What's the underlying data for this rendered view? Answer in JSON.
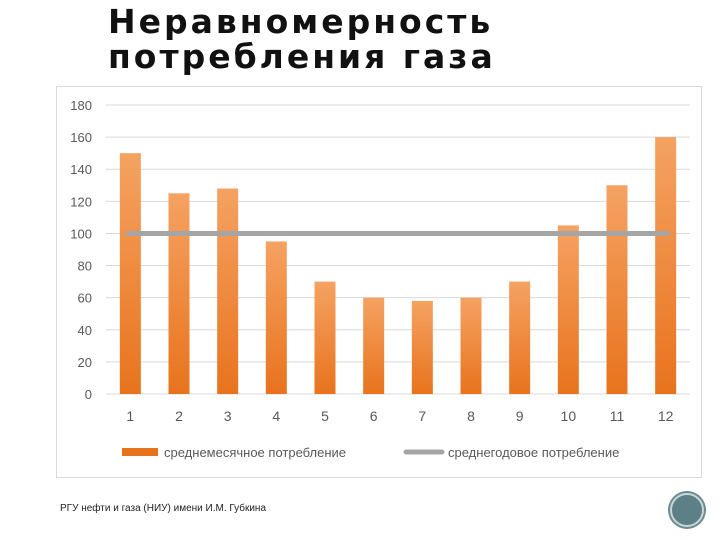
{
  "slide": {
    "title_line1": "Неравномерность",
    "title_line2": "потребления газа",
    "footer": "РГУ нефти и газа (НИУ) имени И.М. Губкина"
  },
  "colors": {
    "bar_top": "#f5a262",
    "bar_bottom": "#e8731d",
    "line": "#a5a5a5",
    "grid": "#d9d9d9",
    "tick_text": "#595959"
  },
  "chart_data": {
    "type": "bar",
    "title": "",
    "xlabel": "",
    "ylabel": "",
    "ylim": [
      0,
      180
    ],
    "yticks": [
      0,
      20,
      40,
      60,
      80,
      100,
      120,
      140,
      160,
      180
    ],
    "categories": [
      "1",
      "2",
      "3",
      "4",
      "5",
      "6",
      "7",
      "8",
      "9",
      "10",
      "11",
      "12"
    ],
    "series": [
      {
        "name": "среднемесячное потребление",
        "kind": "bar",
        "values": [
          150,
          125,
          128,
          95,
          70,
          60,
          58,
          60,
          70,
          105,
          130,
          160
        ]
      },
      {
        "name": "среднегодовое потребление",
        "kind": "line",
        "values": [
          100,
          100,
          100,
          100,
          100,
          100,
          100,
          100,
          100,
          100,
          100,
          100
        ]
      }
    ],
    "legend_position": "bottom"
  }
}
